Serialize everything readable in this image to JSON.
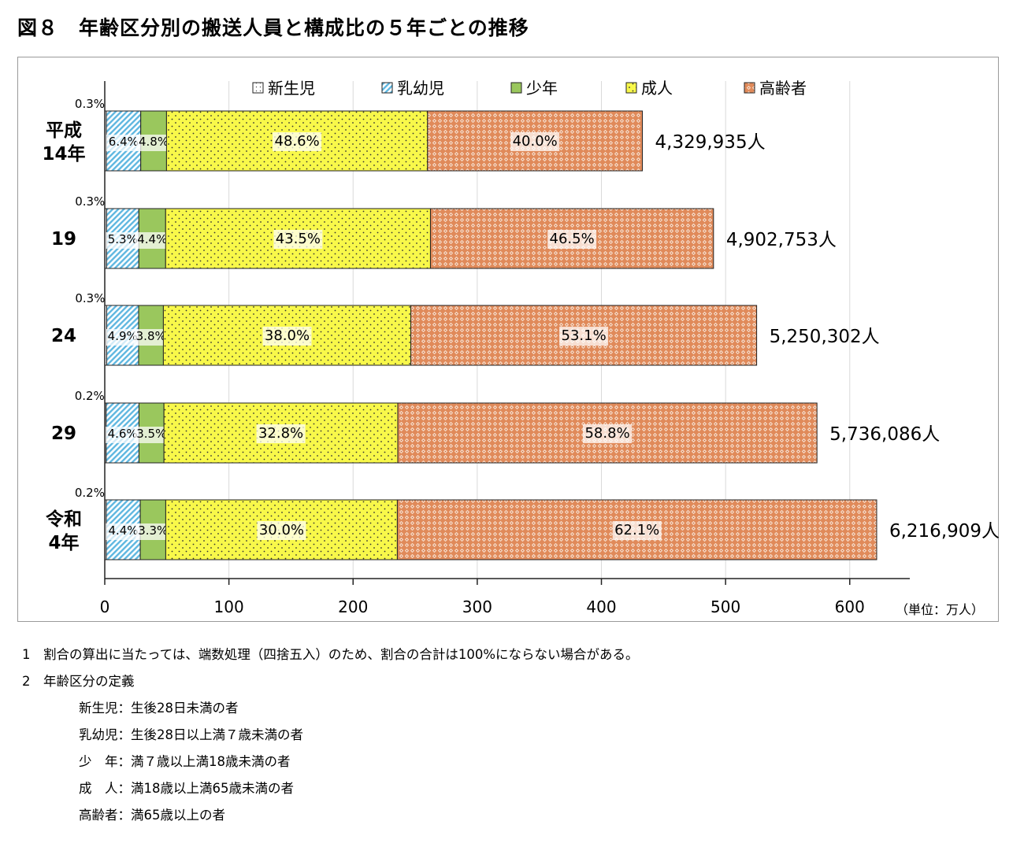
{
  "title": "図８　年齢区分別の搬送人員と構成比の５年ごとの推移",
  "chart_data": {
    "type": "bar",
    "orientation": "horizontal",
    "stacked": true,
    "categories": [
      "平成\n14年",
      "19",
      "24",
      "29",
      "令和\n4年"
    ],
    "series": [
      {
        "name": "新生児",
        "percent_labels": [
          "0.3%",
          "0.3%",
          "0.3%",
          "0.2%",
          "0.2%"
        ],
        "pattern": "dotted-light",
        "color": "#ffffff"
      },
      {
        "name": "乳幼児",
        "percent_labels": [
          "6.4%",
          "5.3%",
          "4.9%",
          "4.6%",
          "4.4%"
        ],
        "pattern": "diagonal-hatch",
        "color": "#5fb7e0"
      },
      {
        "name": "少年",
        "percent_labels": [
          "4.8%",
          "4.4%",
          "3.8%",
          "3.5%",
          "3.3%"
        ],
        "pattern": "solid",
        "color": "#9ac75d"
      },
      {
        "name": "成人",
        "percent_labels": [
          "48.6%",
          "43.5%",
          "38.0%",
          "32.8%",
          "30.0%"
        ],
        "pattern": "dotted",
        "color": "#f8f84a"
      },
      {
        "name": "高齢者",
        "percent_labels": [
          "40.0%",
          "46.5%",
          "53.1%",
          "58.8%",
          "62.1%"
        ],
        "pattern": "diamond",
        "color": "#e08a5a"
      }
    ],
    "totals": [
      4329935,
      4902753,
      5250302,
      5736086,
      6216909
    ],
    "total_labels": [
      "4,329,935人",
      "4,902,753人",
      "5,250,302人",
      "5,736,086人",
      "6,216,909人"
    ],
    "x_ticks": [
      "0",
      "100",
      "200",
      "300",
      "400",
      "500",
      "600"
    ],
    "xlim": [
      0,
      650
    ],
    "unit_label": "（単位：万人）",
    "legend_position": "top",
    "grid": true
  },
  "notes": [
    "1　割合の算出に当たっては、端数処理（四捨五入）のため、割合の合計は100%にならない場合がある。",
    "2　年齢区分の定義"
  ],
  "definitions": [
    "新生児：生後28日未満の者",
    "乳幼児：生後28日以上満７歳未満の者",
    "少　年：満７歳以上満18歳未満の者",
    "成　人：満18歳以上満65歳未満の者",
    "高齢者：満65歳以上の者"
  ]
}
